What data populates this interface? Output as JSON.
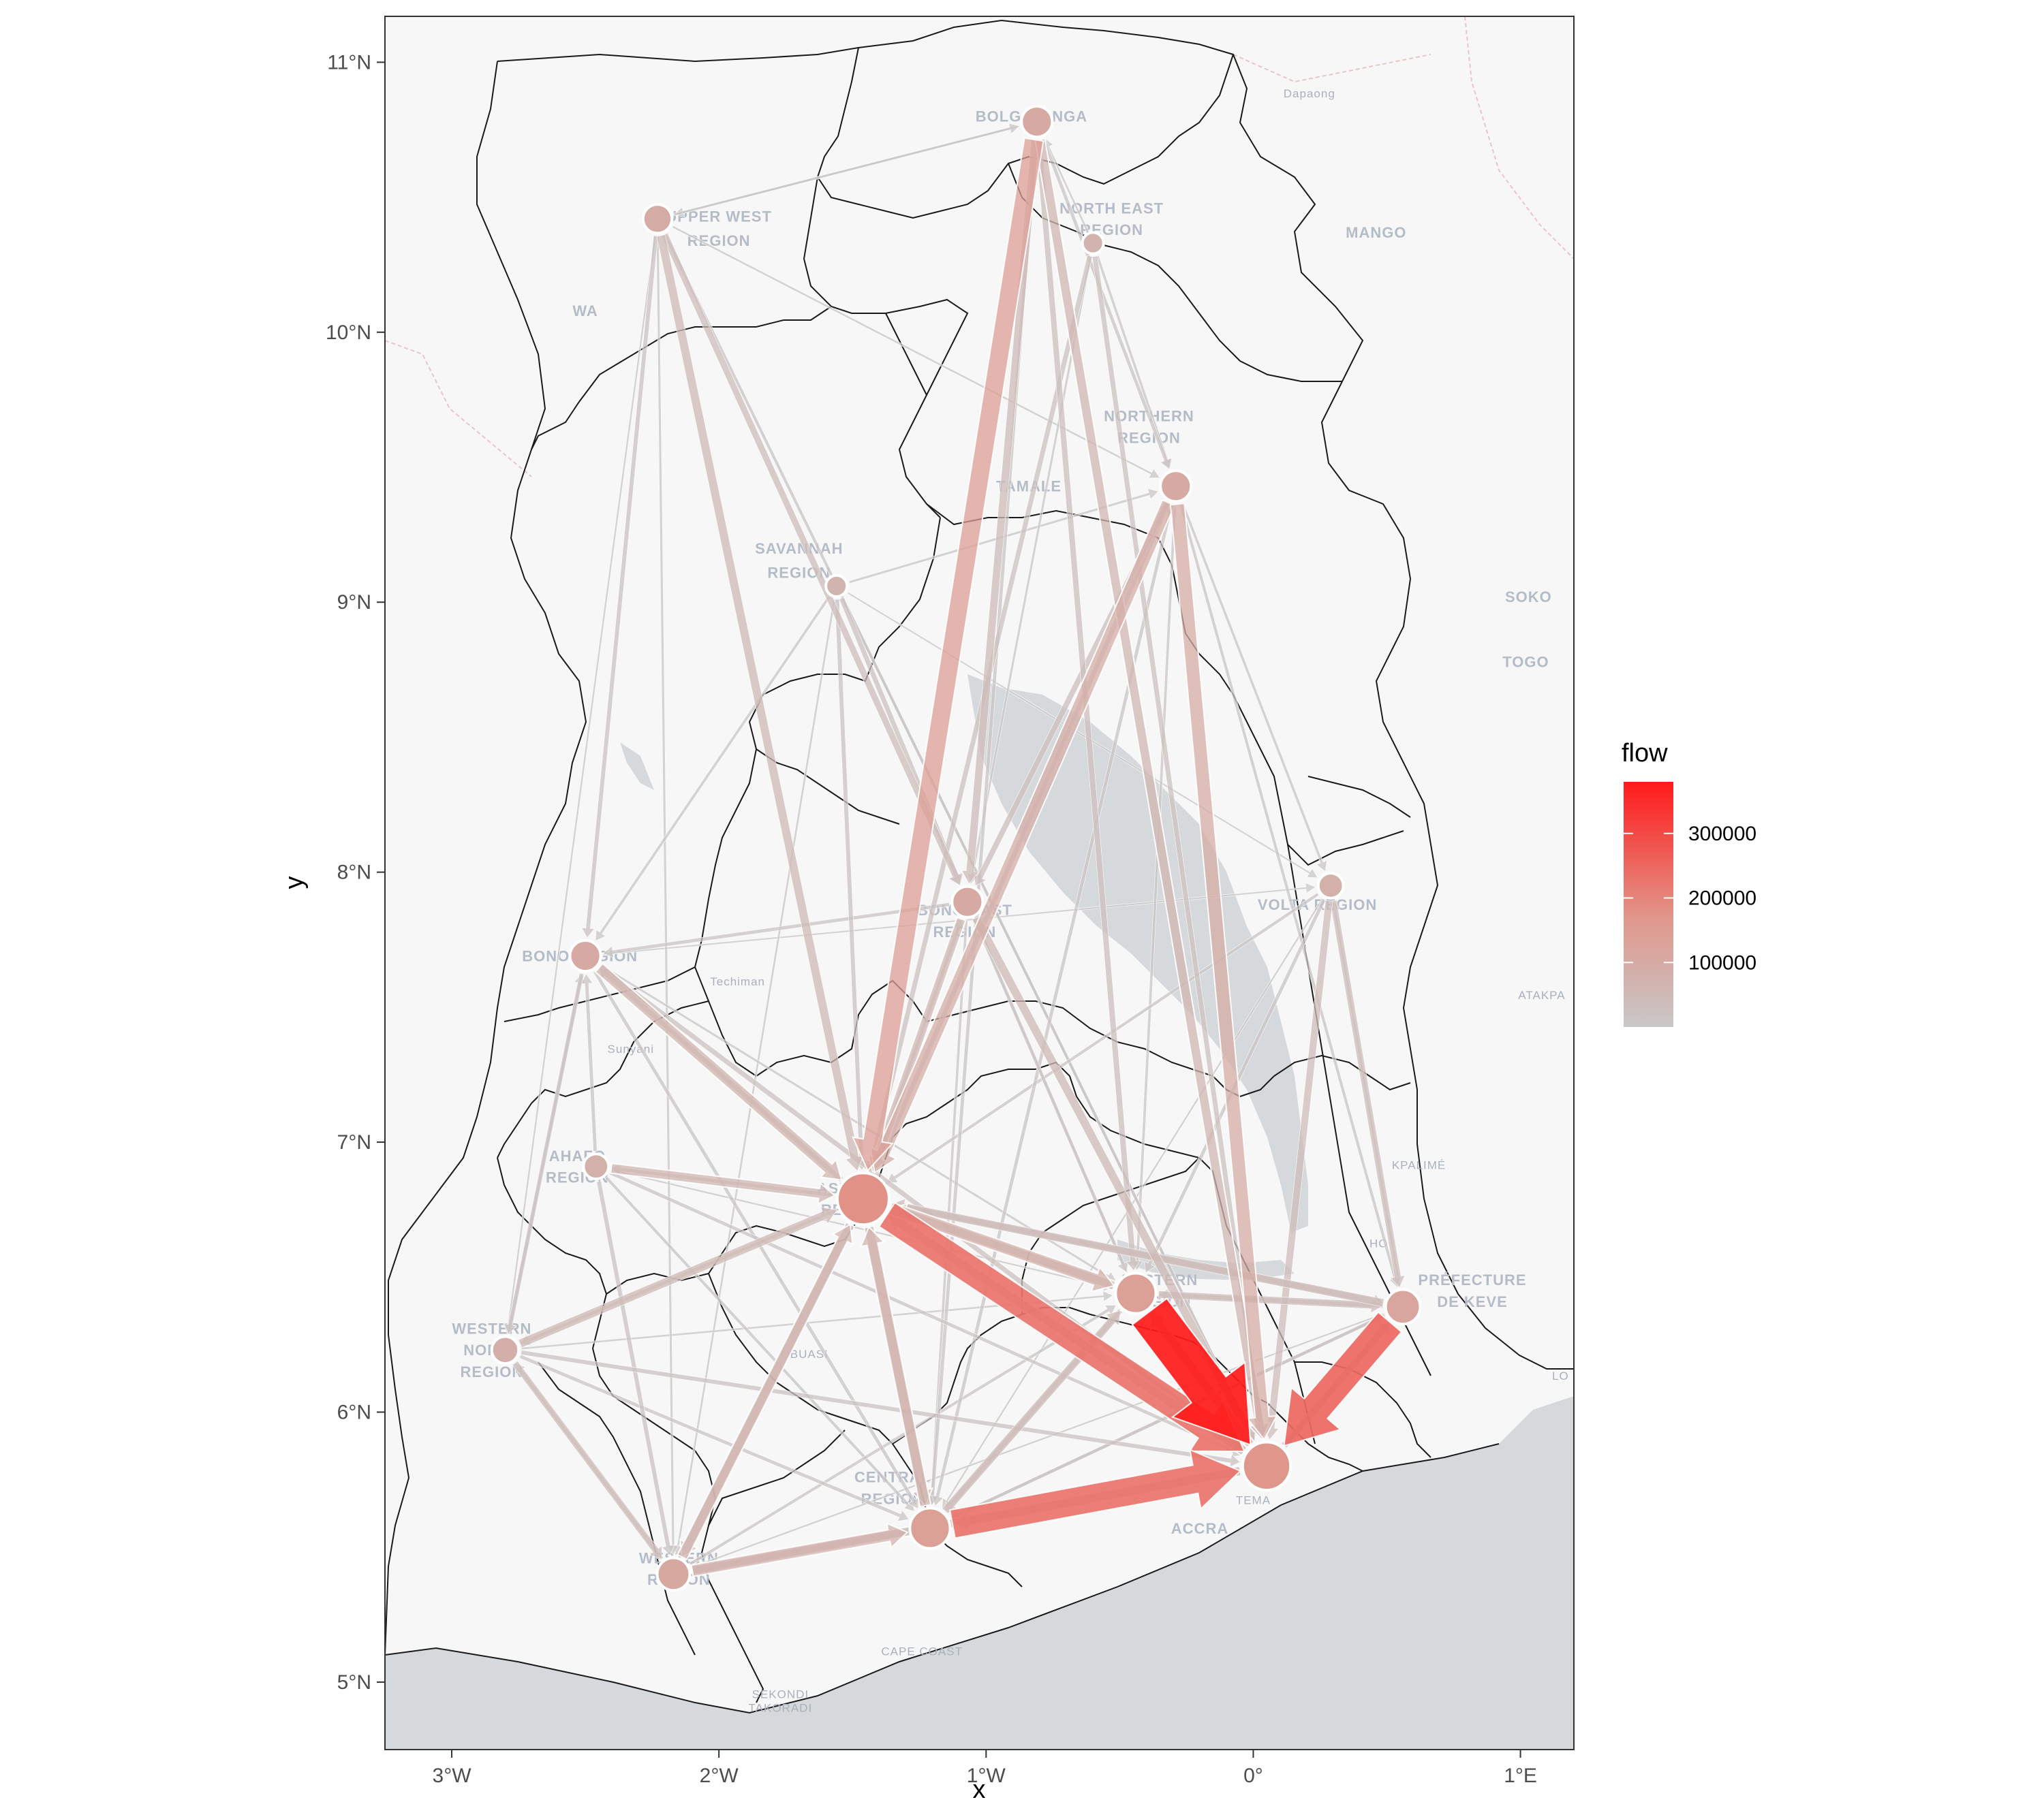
{
  "plot": {
    "xlabel": "x",
    "ylabel": "y",
    "xlim": [
      -3.25,
      1.2
    ],
    "ylim": [
      4.75,
      11.17
    ],
    "x_ticks": [
      {
        "value": -3,
        "label": "3°W"
      },
      {
        "value": -2,
        "label": "2°W"
      },
      {
        "value": -1,
        "label": "1°W"
      },
      {
        "value": 0,
        "label": "0°"
      },
      {
        "value": 1,
        "label": "1°E"
      }
    ],
    "y_ticks": [
      {
        "value": 5,
        "label": "5°N"
      },
      {
        "value": 6,
        "label": "6°N"
      },
      {
        "value": 7,
        "label": "7°N"
      },
      {
        "value": 8,
        "label": "8°N"
      },
      {
        "value": 9,
        "label": "9°N"
      },
      {
        "value": 10,
        "label": "10°N"
      },
      {
        "value": 11,
        "label": "11°N"
      }
    ],
    "colors": {
      "flow_low": "#c8c8c8",
      "flow_high": "#ff1a1a",
      "sea": "#d6d9dc",
      "land": "#f7f7f7",
      "boundary": "#1a1a1a",
      "panel_border": "#333333"
    }
  },
  "basemap_labels": [
    {
      "text": "BOLGATANGA",
      "lon": -0.83,
      "lat": 10.78,
      "size": "normal"
    },
    {
      "text": "NORTH EAST",
      "lon": -0.53,
      "lat": 10.44,
      "size": "normal"
    },
    {
      "text": "REGION",
      "lon": -0.53,
      "lat": 10.36,
      "size": "normal"
    },
    {
      "text": "UPPER WEST",
      "lon": -2.0,
      "lat": 10.41,
      "size": "normal"
    },
    {
      "text": "REGION",
      "lon": -2.0,
      "lat": 10.32,
      "size": "normal"
    },
    {
      "text": "WA",
      "lon": -2.5,
      "lat": 10.06,
      "size": "normal"
    },
    {
      "text": "Dapaong",
      "lon": 0.21,
      "lat": 10.87,
      "size": "small"
    },
    {
      "text": "MANGO",
      "lon": 0.46,
      "lat": 10.35,
      "size": "normal"
    },
    {
      "text": "NORTHERN",
      "lon": -0.39,
      "lat": 9.67,
      "size": "normal"
    },
    {
      "text": "REGION",
      "lon": -0.39,
      "lat": 9.59,
      "size": "normal"
    },
    {
      "text": "TAMALE",
      "lon": -0.84,
      "lat": 9.41,
      "size": "normal"
    },
    {
      "text": "SAVANNAH",
      "lon": -1.7,
      "lat": 9.18,
      "size": "normal"
    },
    {
      "text": "REGION",
      "lon": -1.7,
      "lat": 9.09,
      "size": "normal"
    },
    {
      "text": "SOKO",
      "lon": 1.03,
      "lat": 9.0,
      "size": "normal"
    },
    {
      "text": "TOGO",
      "lon": 1.02,
      "lat": 8.76,
      "size": "normal"
    },
    {
      "text": "BONO EAST",
      "lon": -1.08,
      "lat": 7.84,
      "size": "normal"
    },
    {
      "text": "REGION",
      "lon": -1.08,
      "lat": 7.76,
      "size": "normal"
    },
    {
      "text": "VOLTA REGION",
      "lon": 0.24,
      "lat": 7.86,
      "size": "normal"
    },
    {
      "text": "BONO REGION",
      "lon": -2.52,
      "lat": 7.67,
      "size": "normal"
    },
    {
      "text": "Techiman",
      "lon": -1.93,
      "lat": 7.58,
      "size": "small"
    },
    {
      "text": "ATAKPA",
      "lon": 1.08,
      "lat": 7.53,
      "size": "small"
    },
    {
      "text": "Sunyani",
      "lon": -2.33,
      "lat": 7.33,
      "size": "small"
    },
    {
      "text": "AHAFO",
      "lon": -2.53,
      "lat": 6.93,
      "size": "normal"
    },
    {
      "text": "REGION",
      "lon": -2.53,
      "lat": 6.85,
      "size": "normal"
    },
    {
      "text": "ASHANTI",
      "lon": -1.5,
      "lat": 6.81,
      "size": "normal"
    },
    {
      "text": "REGION",
      "lon": -1.5,
      "lat": 6.73,
      "size": "normal"
    },
    {
      "text": "KPALIMÉ",
      "lon": 0.62,
      "lat": 6.9,
      "size": "small"
    },
    {
      "text": "HO",
      "lon": 0.47,
      "lat": 6.61,
      "size": "small"
    },
    {
      "text": "EASTERN",
      "lon": -0.35,
      "lat": 6.47,
      "size": "normal"
    },
    {
      "text": "REGION",
      "lon": -0.35,
      "lat": 6.39,
      "size": "normal"
    },
    {
      "text": "PRÉFECTURE",
      "lon": 0.82,
      "lat": 6.47,
      "size": "normal"
    },
    {
      "text": "DE KEVE",
      "lon": 0.82,
      "lat": 6.39,
      "size": "normal"
    },
    {
      "text": "WESTERN",
      "lon": -2.85,
      "lat": 6.29,
      "size": "normal"
    },
    {
      "text": "NORTH",
      "lon": -2.85,
      "lat": 6.21,
      "size": "normal"
    },
    {
      "text": "REGION",
      "lon": -2.85,
      "lat": 6.13,
      "size": "normal"
    },
    {
      "text": "OBUASI",
      "lon": -1.68,
      "lat": 6.2,
      "size": "small"
    },
    {
      "text": "CENTRAL",
      "lon": -1.35,
      "lat": 5.74,
      "size": "normal"
    },
    {
      "text": "REGION",
      "lon": -1.35,
      "lat": 5.66,
      "size": "normal"
    },
    {
      "text": "TEMA",
      "lon": 0.0,
      "lat": 5.66,
      "size": "small"
    },
    {
      "text": "ACCRA",
      "lon": -0.2,
      "lat": 5.55,
      "size": "normal"
    },
    {
      "text": "WESTERN",
      "lon": -2.15,
      "lat": 5.44,
      "size": "normal"
    },
    {
      "text": "REGION",
      "lon": -2.15,
      "lat": 5.36,
      "size": "normal"
    },
    {
      "text": "CAPE COAST",
      "lon": -1.24,
      "lat": 5.1,
      "size": "small"
    },
    {
      "text": "SEKONDI",
      "lon": -1.77,
      "lat": 4.94,
      "size": "small"
    },
    {
      "text": "TAKORADI",
      "lon": -1.77,
      "lat": 4.89,
      "size": "small"
    },
    {
      "text": "LO",
      "lon": 1.15,
      "lat": 6.12,
      "size": "small"
    }
  ],
  "legend": {
    "title": "flow",
    "min": 0,
    "max": 380000,
    "ticks": [
      {
        "value": 100000,
        "label": "100000"
      },
      {
        "value": 200000,
        "label": "200000"
      },
      {
        "value": 300000,
        "label": "300000"
      }
    ]
  },
  "chart_data": {
    "type": "flow-map",
    "nodes": [
      {
        "id": "upper_east",
        "lon": -0.81,
        "lat": 10.78,
        "size": 0.45
      },
      {
        "id": "north_east",
        "lon": -0.6,
        "lat": 10.33,
        "size": 0.2
      },
      {
        "id": "upper_west",
        "lon": -2.23,
        "lat": 10.42,
        "size": 0.4
      },
      {
        "id": "northern",
        "lon": -0.29,
        "lat": 9.43,
        "size": 0.45
      },
      {
        "id": "savannah",
        "lon": -1.56,
        "lat": 9.06,
        "size": 0.2
      },
      {
        "id": "bono_east",
        "lon": -1.07,
        "lat": 7.89,
        "size": 0.45
      },
      {
        "id": "oti",
        "lon": 0.29,
        "lat": 7.95,
        "size": 0.3
      },
      {
        "id": "bono",
        "lon": -2.5,
        "lat": 7.69,
        "size": 0.45
      },
      {
        "id": "ahafo",
        "lon": -2.46,
        "lat": 6.91,
        "size": 0.3
      },
      {
        "id": "ashanti",
        "lon": -1.46,
        "lat": 6.79,
        "size": 1.0
      },
      {
        "id": "eastern",
        "lon": -0.44,
        "lat": 6.44,
        "size": 0.7
      },
      {
        "id": "volta",
        "lon": 0.56,
        "lat": 6.39,
        "size": 0.55
      },
      {
        "id": "western_north",
        "lon": -2.8,
        "lat": 6.23,
        "size": 0.35
      },
      {
        "id": "greater_accra",
        "lon": 0.05,
        "lat": 5.8,
        "size": 0.9
      },
      {
        "id": "central",
        "lon": -1.21,
        "lat": 5.57,
        "size": 0.7
      },
      {
        "id": "western",
        "lon": -2.17,
        "lat": 5.4,
        "size": 0.5
      }
    ],
    "flows": [
      {
        "from": "ashanti",
        "to": "greater_accra",
        "flow": 230000
      },
      {
        "from": "eastern",
        "to": "greater_accra",
        "flow": 380000
      },
      {
        "from": "volta",
        "to": "greater_accra",
        "flow": 250000
      },
      {
        "from": "central",
        "to": "greater_accra",
        "flow": 230000
      },
      {
        "from": "upper_east",
        "to": "ashanti",
        "flow": 140000
      },
      {
        "from": "northern",
        "to": "ashanti",
        "flow": 90000
      },
      {
        "from": "northern",
        "to": "greater_accra",
        "flow": 95000
      },
      {
        "from": "ashanti",
        "to": "eastern",
        "flow": 80000
      },
      {
        "from": "bono",
        "to": "ashanti",
        "flow": 70000
      },
      {
        "from": "ahafo",
        "to": "ashanti",
        "flow": 60000
      },
      {
        "from": "western",
        "to": "central",
        "flow": 75000
      },
      {
        "from": "central",
        "to": "ashanti",
        "flow": 70000
      },
      {
        "from": "western",
        "to": "ashanti",
        "flow": 65000
      },
      {
        "from": "ashanti",
        "to": "central",
        "flow": 60000
      },
      {
        "from": "ashanti",
        "to": "western",
        "flow": 55000
      },
      {
        "from": "eastern",
        "to": "ashanti",
        "flow": 55000
      },
      {
        "from": "volta",
        "to": "ashanti",
        "flow": 45000
      },
      {
        "from": "upper_west",
        "to": "ashanti",
        "flow": 50000
      },
      {
        "from": "upper_west",
        "to": "bono_east",
        "flow": 35000
      },
      {
        "from": "upper_east",
        "to": "greater_accra",
        "flow": 60000
      },
      {
        "from": "upper_east",
        "to": "bono_east",
        "flow": 45000
      },
      {
        "from": "bono_east",
        "to": "ashanti",
        "flow": 55000
      },
      {
        "from": "bono_east",
        "to": "greater_accra",
        "flow": 50000
      },
      {
        "from": "oti",
        "to": "greater_accra",
        "flow": 40000
      },
      {
        "from": "oti",
        "to": "volta",
        "flow": 35000
      },
      {
        "from": "western_north",
        "to": "ashanti",
        "flow": 50000
      },
      {
        "from": "western_north",
        "to": "western",
        "flow": 35000
      },
      {
        "from": "greater_accra",
        "to": "central",
        "flow": 60000
      },
      {
        "from": "greater_accra",
        "to": "ashanti",
        "flow": 60000
      },
      {
        "from": "greater_accra",
        "to": "eastern",
        "flow": 55000
      },
      {
        "from": "eastern",
        "to": "volta",
        "flow": 40000
      },
      {
        "from": "central",
        "to": "eastern",
        "flow": 45000
      },
      {
        "from": "western",
        "to": "greater_accra",
        "flow": 55000
      },
      {
        "from": "northern",
        "to": "bono_east",
        "flow": 30000
      },
      {
        "from": "savannah",
        "to": "bono_east",
        "flow": 25000
      },
      {
        "from": "savannah",
        "to": "ashanti",
        "flow": 20000
      },
      {
        "from": "upper_west",
        "to": "bono",
        "flow": 20000
      },
      {
        "from": "upper_east",
        "to": "eastern",
        "flow": 30000
      },
      {
        "from": "north_east",
        "to": "ashanti",
        "flow": 25000
      },
      {
        "from": "north_east",
        "to": "greater_accra",
        "flow": 25000
      },
      {
        "from": "bono",
        "to": "greater_accra",
        "flow": 25000
      },
      {
        "from": "bono",
        "to": "western_north",
        "flow": 20000
      },
      {
        "from": "ahafo",
        "to": "western",
        "flow": 20000
      },
      {
        "from": "ashanti",
        "to": "volta",
        "flow": 30000
      },
      {
        "from": "ashanti",
        "to": "bono",
        "flow": 25000
      },
      {
        "from": "ashanti",
        "to": "northern",
        "flow": 25000
      },
      {
        "from": "bono_east",
        "to": "bono",
        "flow": 15000
      },
      {
        "from": "oti",
        "to": "eastern",
        "flow": 15000
      },
      {
        "from": "volta",
        "to": "central",
        "flow": 15000
      },
      {
        "from": "western_north",
        "to": "central",
        "flow": 15000
      },
      {
        "from": "savannah",
        "to": "bono",
        "flow": 10000
      },
      {
        "from": "upper_west",
        "to": "upper_east",
        "flow": 8000
      },
      {
        "from": "northern",
        "to": "oti",
        "flow": 10000
      },
      {
        "from": "northern",
        "to": "volta",
        "flow": 12000
      },
      {
        "from": "savannah",
        "to": "northern",
        "flow": 8000
      },
      {
        "from": "upper_east",
        "to": "northern",
        "flow": 15000
      },
      {
        "from": "north_east",
        "to": "northern",
        "flow": 10000
      },
      {
        "from": "ahafo",
        "to": "bono",
        "flow": 15000
      },
      {
        "from": "ahafo",
        "to": "central",
        "flow": 12000
      },
      {
        "from": "western_north",
        "to": "greater_accra",
        "flow": 20000
      },
      {
        "from": "western",
        "to": "western_north",
        "flow": 15000
      },
      {
        "from": "bono",
        "to": "central",
        "flow": 15000
      },
      {
        "from": "upper_west",
        "to": "greater_accra",
        "flow": 12000
      },
      {
        "from": "upper_west",
        "to": "western",
        "flow": 8000
      },
      {
        "from": "upper_east",
        "to": "central",
        "flow": 15000
      },
      {
        "from": "northern",
        "to": "central",
        "flow": 15000
      },
      {
        "from": "savannah",
        "to": "greater_accra",
        "flow": 10000
      },
      {
        "from": "savannah",
        "to": "western",
        "flow": 6000
      },
      {
        "from": "oti",
        "to": "ashanti",
        "flow": 12000
      },
      {
        "from": "bono_east",
        "to": "eastern",
        "flow": 15000
      },
      {
        "from": "bono_east",
        "to": "central",
        "flow": 10000
      },
      {
        "from": "eastern",
        "to": "central",
        "flow": 25000
      },
      {
        "from": "volta",
        "to": "eastern",
        "flow": 20000
      },
      {
        "from": "greater_accra",
        "to": "volta",
        "flow": 35000
      },
      {
        "from": "greater_accra",
        "to": "western",
        "flow": 30000
      },
      {
        "from": "central",
        "to": "western",
        "flow": 30000
      },
      {
        "from": "western",
        "to": "eastern",
        "flow": 12000
      },
      {
        "from": "western_north",
        "to": "bono",
        "flow": 10000
      },
      {
        "from": "ahafo",
        "to": "greater_accra",
        "flow": 15000
      },
      {
        "from": "north_east",
        "to": "bono_east",
        "flow": 8000
      },
      {
        "from": "north_east",
        "to": "upper_east",
        "flow": 6000
      },
      {
        "from": "upper_west",
        "to": "northern",
        "flow": 6000
      },
      {
        "from": "bono",
        "to": "eastern",
        "flow": 8000
      },
      {
        "from": "bono",
        "to": "oti",
        "flow": 4000
      },
      {
        "from": "savannah",
        "to": "oti",
        "flow": 4000
      },
      {
        "from": "western_north",
        "to": "eastern",
        "flow": 6000
      },
      {
        "from": "ahafo",
        "to": "eastern",
        "flow": 5000
      },
      {
        "from": "oti",
        "to": "central",
        "flow": 5000
      },
      {
        "from": "volta",
        "to": "western",
        "flow": 5000
      },
      {
        "from": "volta",
        "to": "oti",
        "flow": 8000
      },
      {
        "from": "ashanti",
        "to": "ahafo",
        "flow": 15000
      },
      {
        "from": "ashanti",
        "to": "western_north",
        "flow": 15000
      },
      {
        "from": "ashanti",
        "to": "bono_east",
        "flow": 15000
      },
      {
        "from": "eastern",
        "to": "bono_east",
        "flow": 6000
      },
      {
        "from": "central",
        "to": "volta",
        "flow": 10000
      },
      {
        "from": "upper_east",
        "to": "upper_west",
        "flow": 5000
      },
      {
        "from": "upper_west",
        "to": "western_north",
        "flow": 5000
      },
      {
        "from": "northern",
        "to": "eastern",
        "flow": 10000
      }
    ]
  }
}
